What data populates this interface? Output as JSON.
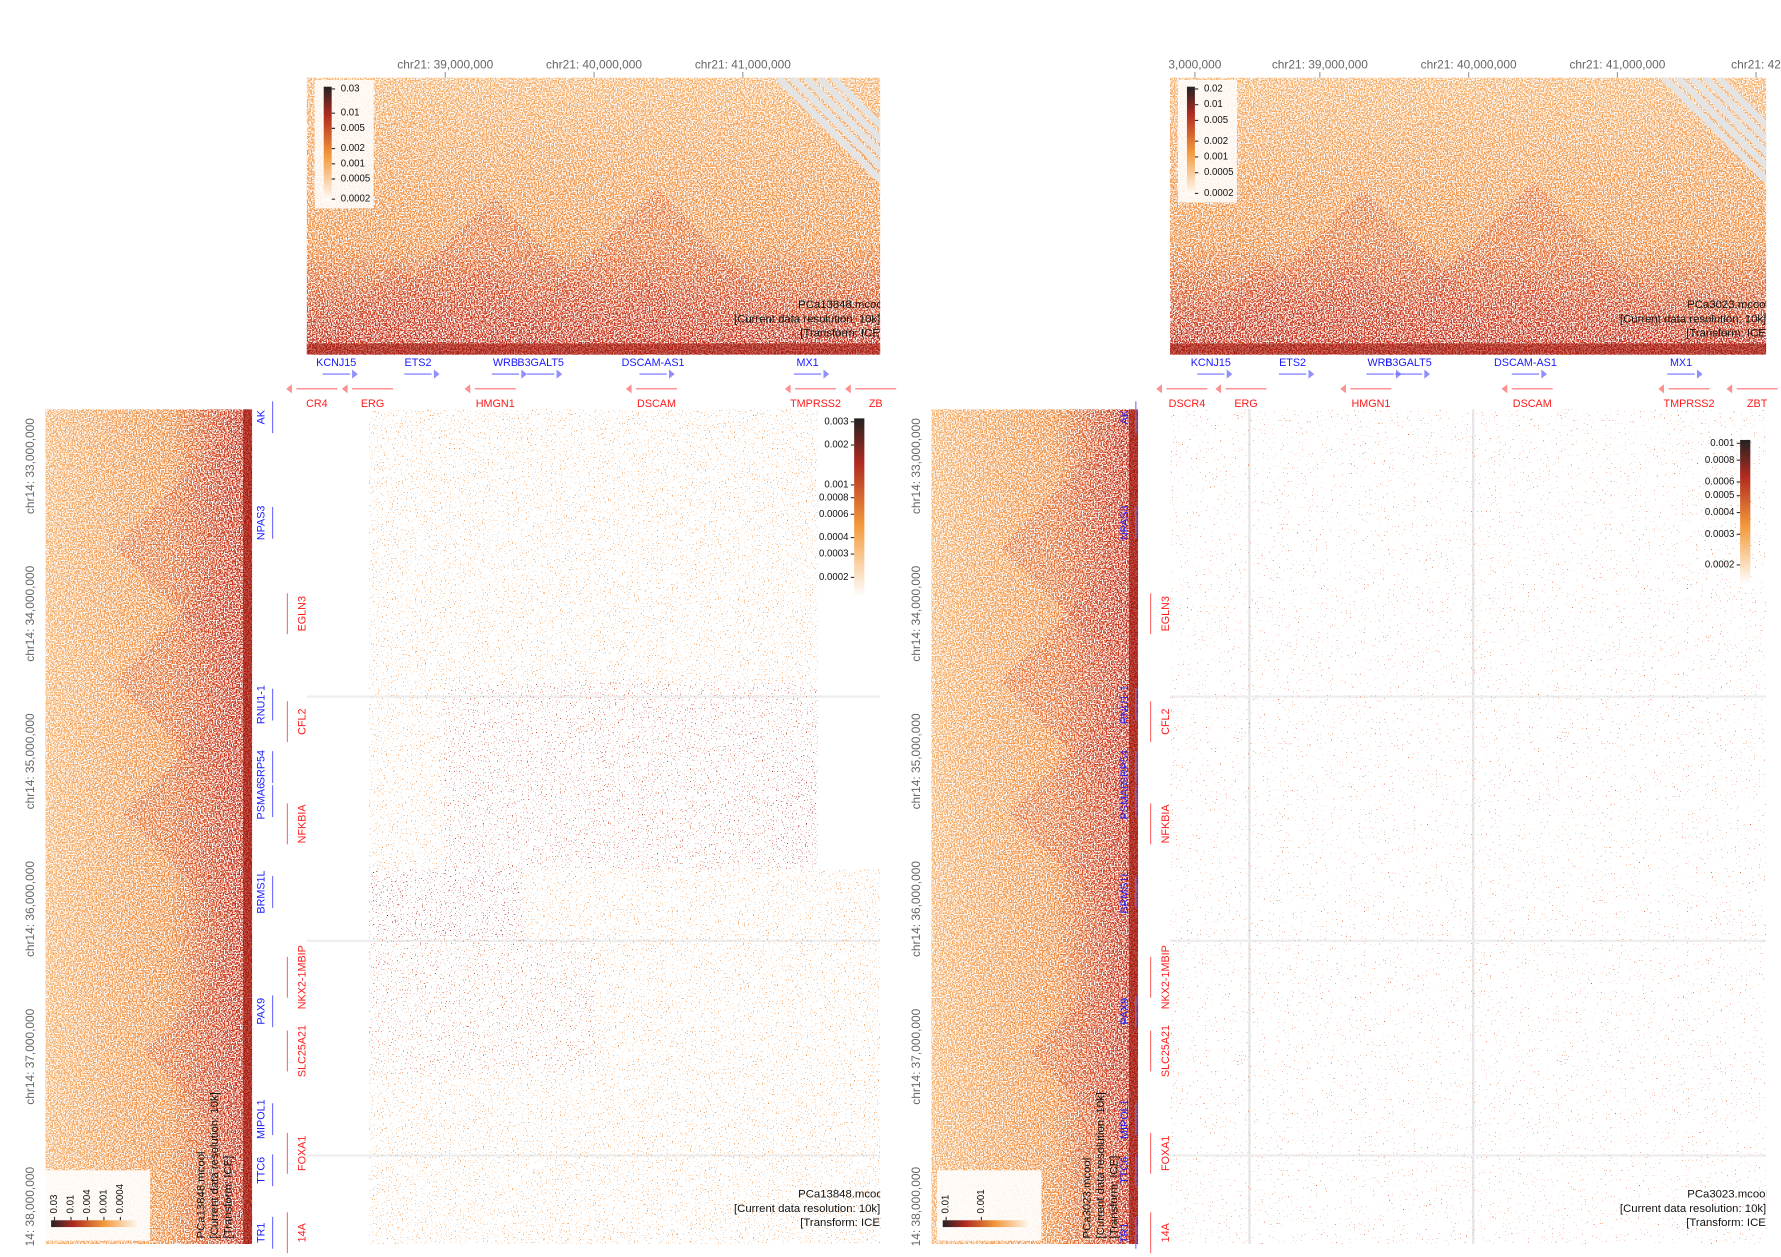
{
  "views": [
    {
      "top_axis": [
        "chr21: 39,000,000",
        "chr21: 40,000,000",
        "chr21: 41,000,000"
      ],
      "left_axis": [
        "chr14: 33,000,000",
        "chr14: 34,000,000",
        "chr14: 35,000,000",
        "chr14: 36,000,000",
        "chr14: 37,000,000",
        "14: 38,000,000"
      ],
      "dataset": {
        "name": "PCa13848.mcool",
        "resolution": "[Current data resolution: 10k]",
        "transform": "[Transform: ICE]"
      },
      "top_colorbar": [
        0.03,
        0.01,
        0.005,
        0.002,
        0.001,
        0.0005,
        0.0002
      ],
      "left_colorbar": [
        0.03,
        0.01,
        0.004,
        0.001,
        0.0004
      ],
      "center_colorbar": [
        0.003,
        0.002,
        0.001,
        0.0008,
        0.0006,
        0.0004,
        0.0003,
        0.0002
      ],
      "top_genes": {
        "plus": [
          "KCNJ15",
          "ETS2",
          "WRB",
          "B3GALT5",
          "DSCAM-AS1",
          "MX1"
        ],
        "minus": [
          "CR4",
          "ERG",
          "HMGN1",
          "DSCAM",
          "TMPRSS2",
          "ZB"
        ]
      },
      "left_genes": {
        "plus": [
          "AK",
          "NPAS3",
          "RNU1-1",
          "SRP54",
          "PSMA6",
          "BRMS1L",
          "PAX9",
          "MIPOL1",
          "TTC6",
          "TR1"
        ],
        "minus": [
          "EGLN3",
          "CFL2",
          "NFKBIA",
          "NKX2-1MBIP",
          "SLC25A21",
          "FOXA1",
          "14A"
        ]
      }
    },
    {
      "top_axis": [
        "3,000,000",
        "chr21: 39,000,000",
        "chr21: 40,000,000",
        "chr21: 41,000,000",
        "chr21: 42"
      ],
      "left_axis": [
        "chr14: 33,000,000",
        "chr14: 34,000,000",
        "chr14: 35,000,000",
        "chr14: 36,000,000",
        "chr14: 37,000,000",
        "14: 38,000,000"
      ],
      "dataset": {
        "name": "PCa3023.mcool",
        "resolution": "[Current data resolution: 10k]",
        "transform": "[Transform: ICE]"
      },
      "top_colorbar": [
        0.02,
        0.01,
        0.005,
        0.002,
        0.001,
        0.0005,
        0.0002
      ],
      "left_colorbar": [
        0.01,
        0.001
      ],
      "center_colorbar": [
        0.001,
        0.0008,
        0.0006,
        0.0005,
        0.0004,
        0.0003,
        0.0002
      ],
      "top_genes": {
        "plus": [
          "KCNJ15",
          "ETS2",
          "WRB",
          "B3GALT5",
          "DSCAM-AS1",
          "MX1"
        ],
        "minus": [
          "DSCR4",
          "ERG",
          "HMGN1",
          "DSCAM",
          "TMPRSS2",
          "ZBT"
        ]
      },
      "left_genes": {
        "plus": [
          "AK",
          "NPAS3",
          "RNU1-1",
          "SRP54",
          "PSMA6",
          "BRMS1L",
          "PAX9",
          "MIPOL1",
          "TTC6",
          "TR1"
        ],
        "minus": [
          "EGLN3",
          "CFL2",
          "NFKBIA",
          "NKX2-1MBIP",
          "SLC25A21",
          "FOXA1",
          "14A"
        ]
      }
    }
  ]
}
